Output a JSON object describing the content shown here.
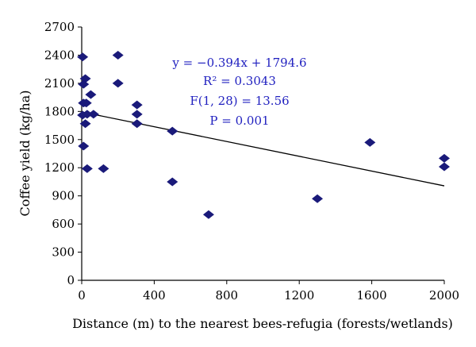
{
  "chart_data": {
    "type": "scatter",
    "xlabel": "Distance (m) to the nearest bees-refugia (forests/wetlands)",
    "ylabel": "Coffee yield (kg/ha)",
    "xlim": [
      0,
      2000
    ],
    "ylim": [
      0,
      2700
    ],
    "x_ticks": [
      "0",
      "400",
      "800",
      "1200",
      "1600",
      "2000"
    ],
    "y_ticks": [
      "0",
      "300",
      "600",
      "900",
      "1200",
      "1500",
      "1800",
      "2100",
      "2400",
      "2700"
    ],
    "grid": false,
    "marker_color": "#1a1a7a",
    "annotation_color": "#1f1fbf",
    "points": [
      {
        "x": 5,
        "y": 2380
      },
      {
        "x": 10,
        "y": 2090
      },
      {
        "x": 20,
        "y": 2150
      },
      {
        "x": 10,
        "y": 1890
      },
      {
        "x": 25,
        "y": 1890
      },
      {
        "x": 50,
        "y": 1980
      },
      {
        "x": 5,
        "y": 1760
      },
      {
        "x": 30,
        "y": 1770
      },
      {
        "x": 65,
        "y": 1770
      },
      {
        "x": 20,
        "y": 1670
      },
      {
        "x": 10,
        "y": 1430
      },
      {
        "x": 30,
        "y": 1190
      },
      {
        "x": 120,
        "y": 1190
      },
      {
        "x": 200,
        "y": 2400
      },
      {
        "x": 200,
        "y": 2100
      },
      {
        "x": 305,
        "y": 1870
      },
      {
        "x": 305,
        "y": 1770
      },
      {
        "x": 305,
        "y": 1670
      },
      {
        "x": 500,
        "y": 1590
      },
      {
        "x": 500,
        "y": 1050
      },
      {
        "x": 700,
        "y": 700
      },
      {
        "x": 1300,
        "y": 870
      },
      {
        "x": 1590,
        "y": 1470
      },
      {
        "x": 2000,
        "y": 1300
      },
      {
        "x": 2000,
        "y": 1210
      }
    ],
    "trendline": {
      "x": [
        0,
        2000
      ],
      "y": [
        1794.6,
        1006.6
      ]
    },
    "annotations": {
      "equation": "y = −0.394x + 1794.6",
      "r2": "R² = 0.3043",
      "f": "F(1, 28) = 13.56",
      "p": "P =  0.001"
    }
  }
}
